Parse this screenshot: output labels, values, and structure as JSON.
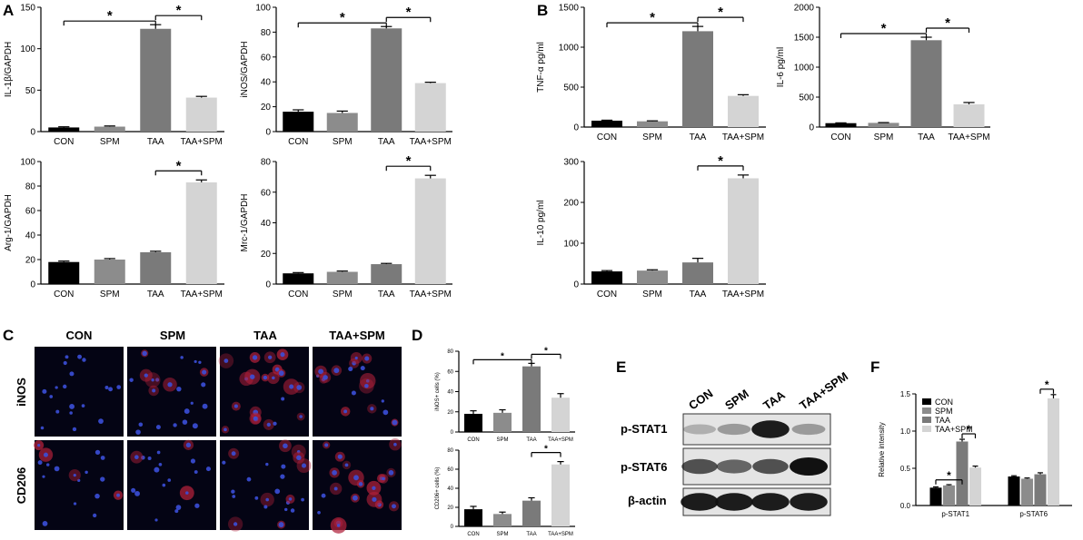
{
  "panels": {
    "A": "A",
    "B": "B",
    "C": "C",
    "D": "D",
    "E": "E",
    "F": "F"
  },
  "colors": {
    "CON": "#000000",
    "SPM": "#8c8c8c",
    "TAA": "#7a7a7a",
    "TAA+SPM": "#d4d4d4"
  },
  "micrographs": {
    "columns": [
      "CON",
      "SPM",
      "TAA",
      "TAA+SPM"
    ],
    "rows": [
      "iNOS",
      "CD206"
    ]
  },
  "blot": {
    "lanes": [
      "CON",
      "SPM",
      "TAA",
      "TAA+SPM"
    ],
    "rows": [
      "p-STAT1",
      "p-STAT6",
      "β-actin"
    ]
  },
  "chart_data": [
    {
      "id": "il1b",
      "type": "bar",
      "categories": [
        "CON",
        "SPM",
        "TAA",
        "TAA+SPM"
      ],
      "values": [
        5,
        6,
        124,
        41
      ],
      "errors": [
        0.8,
        0.8,
        5,
        1.5
      ],
      "ylabel": "IL-1β/GAPDH",
      "ylim": [
        0,
        150
      ],
      "yticks": [
        0,
        50,
        100,
        150
      ],
      "sig": [
        [
          0,
          2,
          "*"
        ],
        [
          2,
          3,
          "*"
        ]
      ]
    },
    {
      "id": "inos",
      "type": "bar",
      "categories": [
        "CON",
        "SPM",
        "TAA",
        "TAA+SPM"
      ],
      "values": [
        16,
        15,
        83,
        39
      ],
      "errors": [
        1.5,
        1.5,
        1.5,
        0.7
      ],
      "ylabel": "iNOS/GAPDH",
      "ylim": [
        0,
        100
      ],
      "yticks": [
        0,
        20,
        40,
        60,
        80,
        100
      ],
      "sig": [
        [
          0,
          2,
          "*"
        ],
        [
          2,
          3,
          "*"
        ]
      ]
    },
    {
      "id": "tnfa",
      "type": "bar",
      "categories": [
        "CON",
        "SPM",
        "TAA",
        "TAA+SPM"
      ],
      "values": [
        80,
        72,
        1200,
        390
      ],
      "errors": [
        6,
        6,
        60,
        15
      ],
      "ylabel": "TNF-α pg/ml",
      "ylim": [
        0,
        1500
      ],
      "yticks": [
        0,
        500,
        1000,
        1500
      ],
      "sig": [
        [
          0,
          2,
          "*"
        ],
        [
          2,
          3,
          "*"
        ]
      ]
    },
    {
      "id": "il6",
      "type": "bar",
      "categories": [
        "CON",
        "SPM",
        "TAA",
        "TAA+SPM"
      ],
      "values": [
        65,
        70,
        1450,
        380
      ],
      "errors": [
        5,
        5,
        50,
        30
      ],
      "ylabel": "IL-6 pg/ml",
      "ylim": [
        0,
        2000
      ],
      "yticks": [
        0,
        500,
        1000,
        1500,
        2000
      ],
      "sig": [
        [
          0,
          2,
          "*"
        ],
        [
          2,
          3,
          "*"
        ]
      ]
    },
    {
      "id": "arg1",
      "type": "bar",
      "categories": [
        "CON",
        "SPM",
        "TAA",
        "TAA+SPM"
      ],
      "values": [
        18,
        20,
        26,
        83
      ],
      "errors": [
        0.8,
        0.8,
        0.8,
        2
      ],
      "ylabel": "Arg-1/GAPDH",
      "ylim": [
        0,
        100
      ],
      "yticks": [
        0,
        20,
        40,
        60,
        80,
        100
      ],
      "sig": [
        [
          2,
          3,
          "*"
        ]
      ]
    },
    {
      "id": "mrc1",
      "type": "bar",
      "categories": [
        "CON",
        "SPM",
        "TAA",
        "TAA+SPM"
      ],
      "values": [
        7,
        8,
        13,
        69
      ],
      "errors": [
        0.5,
        0.5,
        0.5,
        2
      ],
      "ylabel": "Mrc-1/GAPDH",
      "ylim": [
        0,
        80
      ],
      "yticks": [
        0,
        20,
        40,
        60,
        80
      ],
      "sig": [
        [
          2,
          3,
          "*"
        ]
      ]
    },
    {
      "id": "il10",
      "type": "bar",
      "categories": [
        "CON",
        "SPM",
        "TAA",
        "TAA+SPM"
      ],
      "values": [
        31,
        33,
        53,
        259
      ],
      "errors": [
        2,
        2,
        10,
        8
      ],
      "ylabel": "IL-10 pg/ml",
      "ylim": [
        0,
        300
      ],
      "yticks": [
        0,
        100,
        200,
        300
      ],
      "sig": [
        [
          2,
          3,
          "*"
        ]
      ]
    },
    {
      "id": "inos_cells",
      "type": "bar",
      "categories": [
        "CON",
        "SPM",
        "TAA",
        "TAA+SPM"
      ],
      "values": [
        18,
        19,
        65,
        34
      ],
      "errors": [
        3,
        3,
        3,
        4
      ],
      "ylabel": "iNOS+ cells (%)",
      "ylim": [
        0,
        80
      ],
      "yticks": [
        0,
        20,
        40,
        60,
        80
      ],
      "sig": [
        [
          0,
          2,
          "*"
        ],
        [
          2,
          3,
          "*"
        ]
      ]
    },
    {
      "id": "cd206_cells",
      "type": "bar",
      "categories": [
        "CON",
        "SPM",
        "TAA",
        "TAA+SPM"
      ],
      "values": [
        18,
        13,
        27,
        65
      ],
      "errors": [
        3,
        2,
        3,
        3
      ],
      "ylabel": "CD206+ cells (%)",
      "ylim": [
        0,
        80
      ],
      "yticks": [
        0,
        20,
        40,
        60,
        80
      ],
      "sig": [
        [
          2,
          3,
          "*"
        ]
      ]
    },
    {
      "id": "stat",
      "type": "bar",
      "categories": [
        "p-STAT1",
        "p-STAT6"
      ],
      "series": [
        {
          "name": "CON",
          "values": [
            0.24,
            0.39
          ],
          "errors": [
            0.01,
            0.01
          ]
        },
        {
          "name": "SPM",
          "values": [
            0.27,
            0.36
          ],
          "errors": [
            0.01,
            0.01
          ]
        },
        {
          "name": "TAA",
          "values": [
            0.86,
            0.42
          ],
          "errors": [
            0.03,
            0.02
          ]
        },
        {
          "name": "TAA+SPM",
          "values": [
            0.51,
            1.44
          ],
          "errors": [
            0.02,
            0.05
          ]
        }
      ],
      "ylabel": "Relative intensity",
      "ylim": [
        0,
        1.5
      ],
      "yticks": [
        "0.0",
        "0.5",
        "1.0",
        "1.5"
      ],
      "legend": "top-left",
      "sig": [
        [
          0,
          0,
          2,
          "*"
        ],
        [
          0,
          2,
          3,
          "*"
        ],
        [
          1,
          2,
          3,
          "*"
        ]
      ]
    }
  ]
}
